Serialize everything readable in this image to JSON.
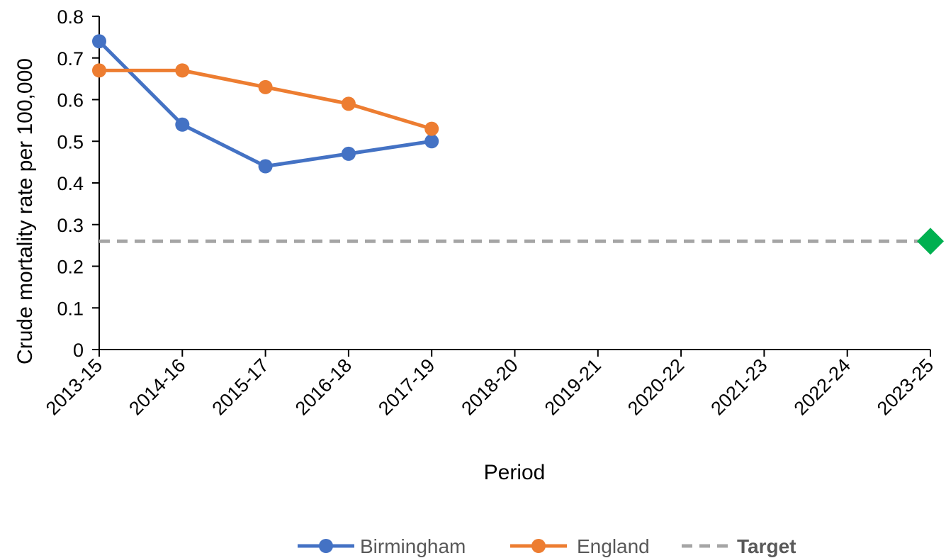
{
  "chart_data": {
    "type": "line",
    "title": "",
    "xlabel": "Period",
    "ylabel": "Crude mortality rate per 100,000",
    "categories": [
      "2013-15",
      "2014-16",
      "2015-17",
      "2016-18",
      "2017-19",
      "2018-20",
      "2019-21",
      "2020-22",
      "2021-23",
      "2022-24",
      "2023-25"
    ],
    "ylim": [
      0,
      0.8
    ],
    "yticks": [
      0,
      0.1,
      0.2,
      0.3,
      0.4,
      0.5,
      0.6,
      0.7,
      0.8
    ],
    "ytick_labels": [
      "0",
      "0.1",
      "0.2",
      "0.3",
      "0.4",
      "0.5",
      "0.6",
      "0.7",
      "0.8"
    ],
    "grid": false,
    "legend_position": "bottom",
    "series": [
      {
        "name": "Birmingham",
        "color": "#4472c4",
        "style": "line-with-markers",
        "values": [
          0.74,
          0.54,
          0.44,
          0.47,
          0.5,
          null,
          null,
          null,
          null,
          null,
          null
        ]
      },
      {
        "name": "England",
        "color": "#ed7d31",
        "style": "line-with-markers",
        "values": [
          0.67,
          0.67,
          0.63,
          0.59,
          0.53,
          null,
          null,
          null,
          null,
          null,
          null
        ]
      },
      {
        "name": "Target",
        "color": "#a5a5a5",
        "style": "dashed-line",
        "value": 0.26
      }
    ],
    "target_marker": {
      "category": "2023-25",
      "value": 0.26,
      "color": "#00b050",
      "shape": "diamond"
    }
  }
}
